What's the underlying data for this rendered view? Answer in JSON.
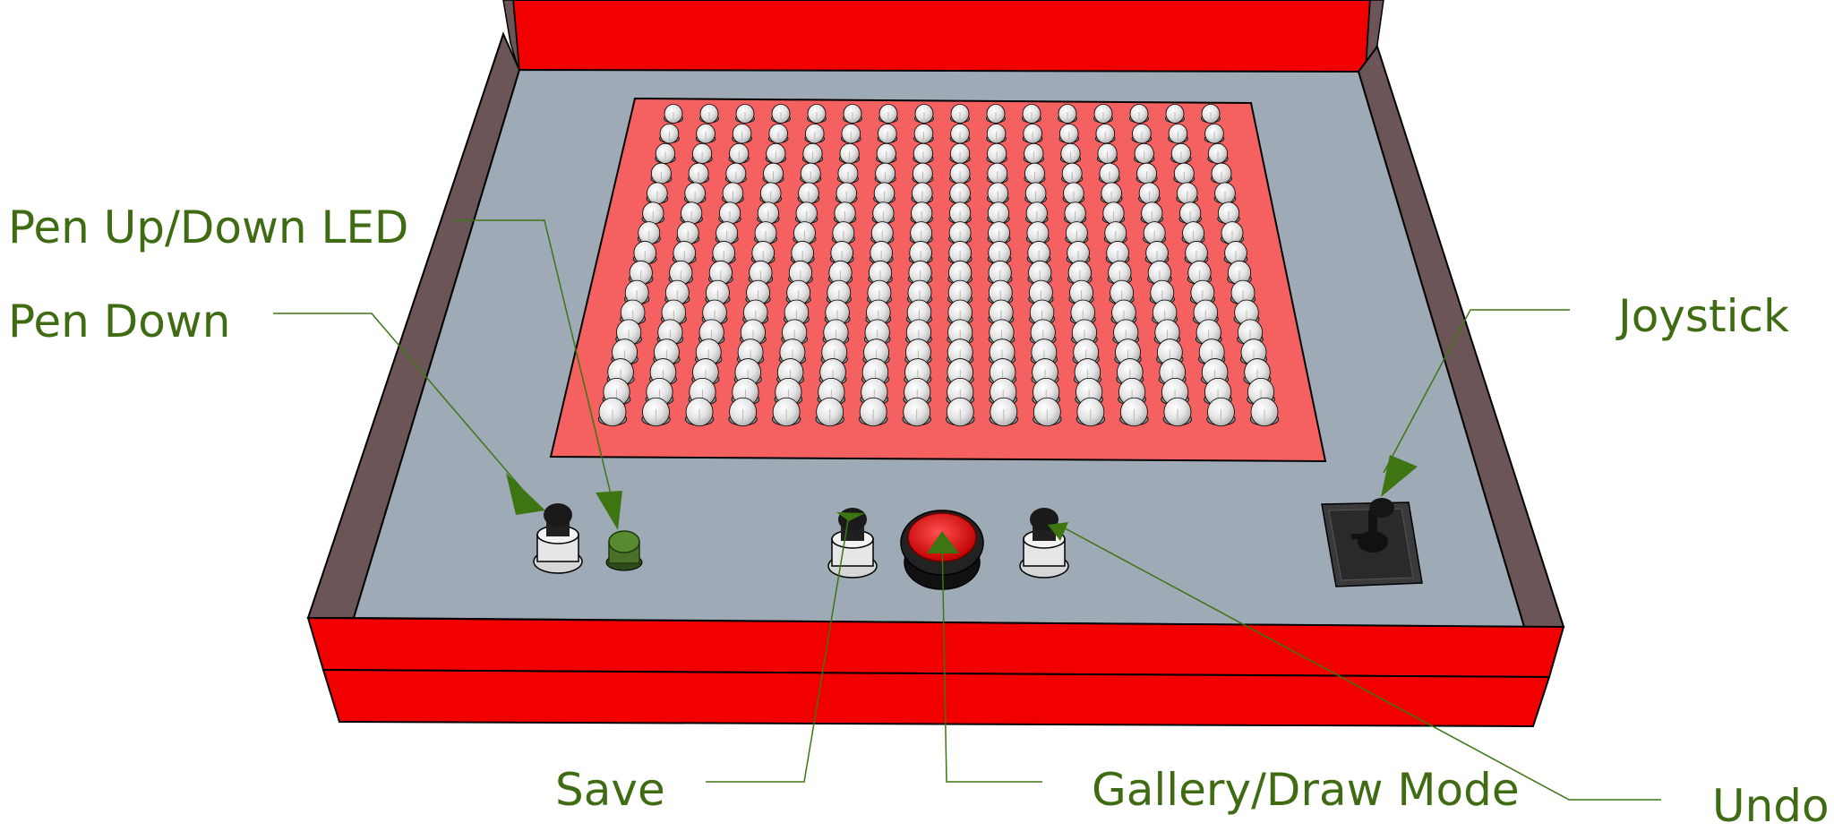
{
  "labels": {
    "pen_led": "Pen Up/Down LED",
    "pen_down": "Pen Down",
    "joystick": "Joystick",
    "save": "Save",
    "gallery": "Gallery/Draw Mode",
    "undo": "Undo"
  },
  "led_matrix": {
    "rows": 16,
    "cols": 16
  },
  "colors": {
    "case_red": "#f20000",
    "panel_grey": "#9eaab5",
    "matrix_pink": "#f56060",
    "side_brown": "#6b5556",
    "label_green": "#3f6b12",
    "arrow_green": "#3d7512"
  }
}
